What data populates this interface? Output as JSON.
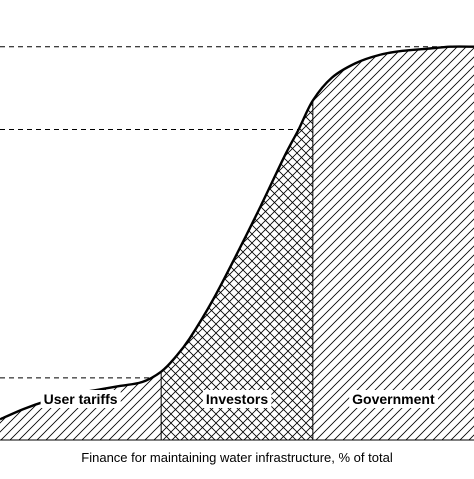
{
  "chart_data": {
    "type": "area",
    "title": "",
    "xlabel": "Finance for maintaining water infrastructure, % of total",
    "ylabel": "",
    "curve": {
      "x": [
        0,
        5,
        10,
        15,
        20,
        25,
        30,
        34,
        37,
        40,
        45,
        50,
        55,
        60,
        63,
        66,
        70,
        75,
        80,
        85,
        90,
        95,
        100
      ],
      "y": [
        5,
        7.5,
        9.5,
        11,
        12,
        13,
        14,
        16.5,
        20,
        24.5,
        34,
        45,
        56.5,
        68.5,
        75,
        82,
        87.5,
        91,
        93,
        94,
        94.5,
        95,
        95
      ]
    },
    "reference_levels": [
      15,
      75,
      95
    ],
    "regions": [
      {
        "label": "User tariffs",
        "x_start": 0,
        "x_end": 34,
        "pattern": "hatch"
      },
      {
        "label": "Investors",
        "x_start": 34,
        "x_end": 66,
        "pattern": "crosshatch"
      },
      {
        "label": "Government",
        "x_start": 66,
        "x_end": 100,
        "pattern": "hatch"
      }
    ],
    "xlim": [
      0,
      100
    ],
    "ylim": [
      0,
      100
    ],
    "grid": false
  }
}
